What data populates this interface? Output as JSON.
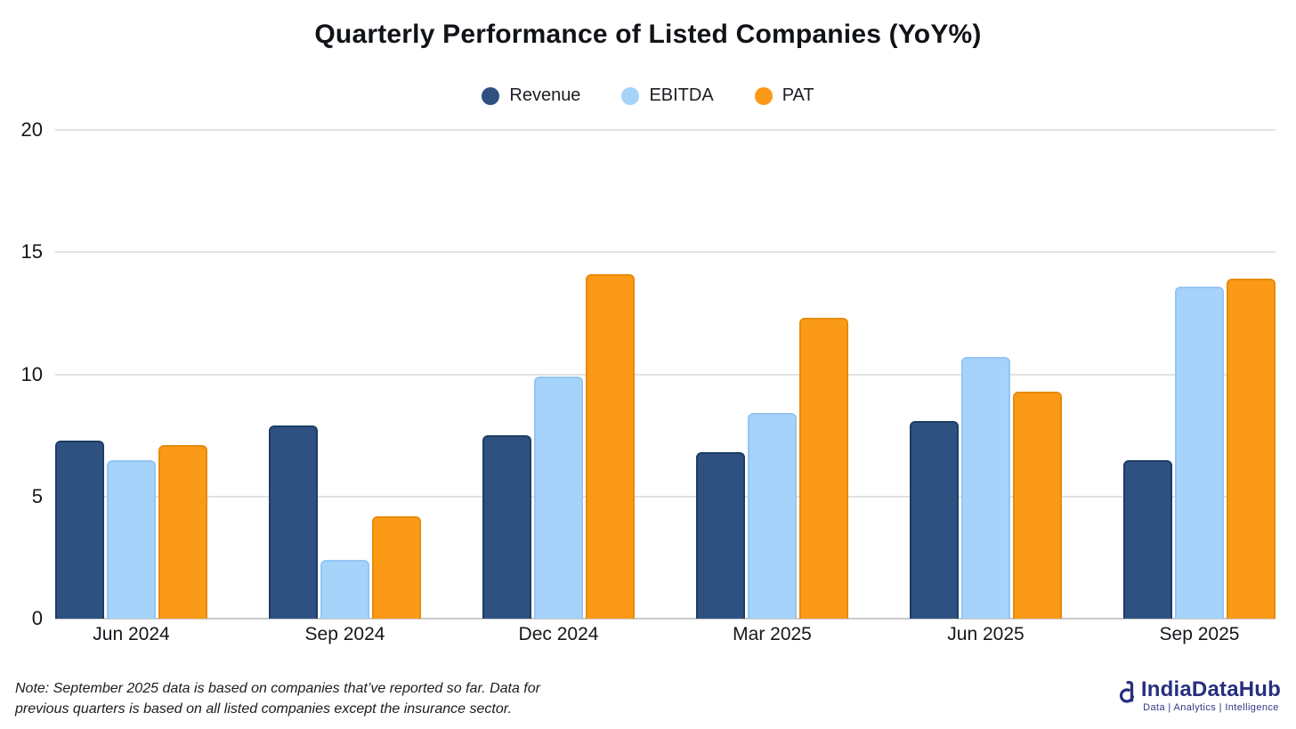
{
  "title": "Quarterly Performance of Listed Companies (YoY%)",
  "chart_data": {
    "type": "bar",
    "title": "Quarterly Performance of Listed Companies (YoY%)",
    "categories": [
      "Jun 2024",
      "Sep 2024",
      "Dec 2024",
      "Mar 2025",
      "Jun 2025",
      "Sep 2025"
    ],
    "series": [
      {
        "name": "Revenue",
        "color": "#2E5181",
        "border_color": "#1C3D64",
        "values": [
          7.3,
          7.9,
          7.5,
          6.8,
          8.1,
          6.5
        ]
      },
      {
        "name": "EBITDA",
        "color": "#A6D3FA",
        "border_color": "#93C6F3",
        "values": [
          6.5,
          2.4,
          9.9,
          8.4,
          10.7,
          13.6
        ]
      },
      {
        "name": "PAT",
        "color": "#FB9A16",
        "border_color": "#E78A0B",
        "values": [
          7.1,
          4.2,
          14.1,
          12.3,
          9.3,
          13.9
        ]
      }
    ],
    "xlabel": "",
    "ylabel": "",
    "ylim": [
      0,
      20
    ],
    "yticks": [
      0,
      5,
      10,
      15,
      20
    ],
    "grid": true,
    "legend_position": "top-center"
  },
  "note": {
    "line1": "Note: September 2025 data is based on companies that’ve reported so far. Data for",
    "line2": "previous quarters is based on all listed companies except the insurance sector."
  },
  "logo": {
    "name": "IndiaDataHub",
    "tagline": "Data | Analytics | Intelligence",
    "color": "#272F7D"
  }
}
